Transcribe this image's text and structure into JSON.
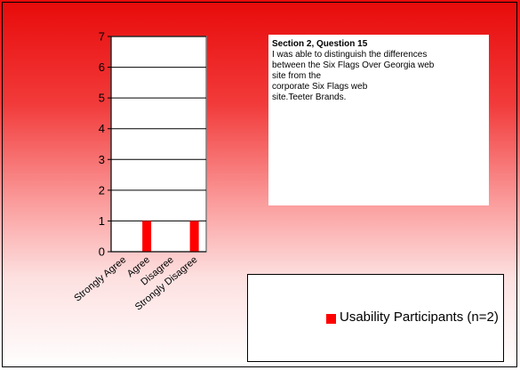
{
  "slide": {
    "background_top": "#e80a0a",
    "background_bottom": "#ffffff"
  },
  "question": {
    "title": "Section 2, Question 15",
    "text": " I was able to distinguish the differences\nbetween the Six Flags Over Georgia web\nsite from the\ncorporate Six Flags web\nsite.Teeter Brands."
  },
  "legend": {
    "label": "Usability Participants (n=2)",
    "color": "#ff0000"
  },
  "chart_data": {
    "type": "bar",
    "categories": [
      "Strongly Agree",
      "Agree",
      "Disagree",
      "Strongly Disagree"
    ],
    "series": [
      {
        "name": "Usability Participants (n=2)",
        "values": [
          0,
          1,
          0,
          1
        ],
        "color": "#ff0000"
      }
    ],
    "ylim": [
      0,
      7
    ],
    "yticks": [
      0,
      1,
      2,
      3,
      4,
      5,
      6,
      7
    ],
    "grid": true,
    "legend_position": "bottom-right"
  }
}
